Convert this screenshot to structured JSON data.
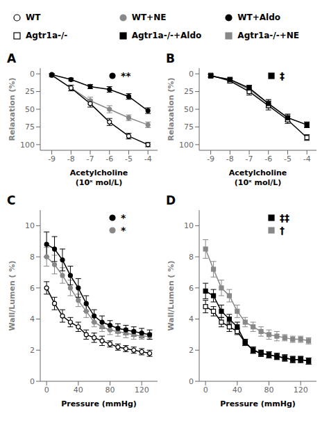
{
  "chart_data": [
    {
      "type": "line",
      "title": "A",
      "x_label": "Acetylcholine\n(10ˣ mol/L)",
      "y_label": "Relaxation (%)",
      "x": [
        -9,
        -8,
        -7,
        -6,
        -5,
        -4
      ],
      "xlim": [
        -9.6,
        -3.5
      ],
      "xticks": [
        -9,
        -8,
        -7,
        -6,
        -5,
        -4
      ],
      "ylim": [
        108,
        -8
      ],
      "yticks": [
        0,
        25,
        50,
        75,
        100
      ],
      "grid": false,
      "series": [
        {
          "name": "WT+NE",
          "color": "#888888",
          "marker": "circle",
          "line_style": "solid",
          "values": [
            2,
            20,
            38,
            50,
            62,
            72
          ],
          "errors": [
            2,
            4,
            5,
            5,
            4,
            4
          ]
        },
        {
          "name": "WT",
          "color": "#000000",
          "marker": "circle_open",
          "line_style": "solid",
          "values": [
            2,
            20,
            42,
            68,
            88,
            100
          ],
          "errors": [
            2,
            4,
            5,
            5,
            4,
            3
          ]
        },
        {
          "name": "WT+Aldo",
          "color": "#000000",
          "marker": "circle",
          "line_style": "solid",
          "values": [
            1,
            8,
            18,
            22,
            32,
            52
          ],
          "errors": [
            1,
            2,
            3,
            4,
            4,
            4
          ]
        }
      ],
      "annotations": [
        {
          "text": "**",
          "marker": "circle",
          "color": "#000000"
        }
      ]
    },
    {
      "type": "line",
      "title": "B",
      "x_label": "Acetylcholine\n(10ˣ mol/L)",
      "y_label": "Relaxation (%)",
      "x": [
        -9,
        -8,
        -7,
        -6,
        -5,
        -4
      ],
      "xlim": [
        -9.6,
        -3.5
      ],
      "xticks": [
        -9,
        -8,
        -7,
        -6,
        -5,
        -4
      ],
      "ylim": [
        108,
        -8
      ],
      "yticks": [
        0,
        25,
        50,
        75,
        100
      ],
      "grid": false,
      "series": [
        {
          "name": "Agtr1a-/-+NE",
          "color": "#888888",
          "marker": "square",
          "line_style": "solid",
          "values": [
            3,
            8,
            22,
            42,
            62,
            72
          ],
          "errors": [
            2,
            3,
            5,
            6,
            5,
            4
          ]
        },
        {
          "name": "Agtr1a-/-",
          "color": "#000000",
          "marker": "square_open",
          "line_style": "solid",
          "values": [
            2,
            10,
            25,
            45,
            65,
            90
          ],
          "errors": [
            2,
            3,
            5,
            6,
            5,
            4
          ]
        },
        {
          "name": "Agtr1a-/-+Aldo",
          "color": "#000000",
          "marker": "square",
          "line_style": "solid",
          "values": [
            3,
            8,
            20,
            42,
            62,
            72
          ],
          "errors": [
            2,
            2,
            4,
            5,
            5,
            4
          ]
        }
      ],
      "annotations": [
        {
          "text": "‡",
          "marker": "square",
          "color": "#000000"
        }
      ]
    },
    {
      "type": "line",
      "title": "C",
      "x_label": "Pressure (mmHg)",
      "y_label": "Wall/Lumen ( %)",
      "x": [
        0,
        10,
        20,
        30,
        40,
        50,
        60,
        70,
        80,
        90,
        100,
        110,
        120,
        130
      ],
      "xlim": [
        -8,
        140
      ],
      "xticks": [
        0,
        40,
        80,
        120
      ],
      "ylim": [
        0,
        11
      ],
      "yticks": [
        0,
        2,
        4,
        6,
        8,
        10
      ],
      "grid": false,
      "series": [
        {
          "name": "WT",
          "color": "#000000",
          "marker": "circle_open",
          "line_style": "solid",
          "values": [
            6.0,
            5.0,
            4.2,
            3.8,
            3.5,
            3.0,
            2.8,
            2.6,
            2.4,
            2.2,
            2.1,
            2.0,
            1.9,
            1.8
          ],
          "errors": [
            0.4,
            0.4,
            0.4,
            0.3,
            0.3,
            0.3,
            0.3,
            0.3,
            0.2,
            0.2,
            0.2,
            0.2,
            0.2,
            0.2
          ]
        },
        {
          "name": "WT+NE",
          "color": "#888888",
          "marker": "circle",
          "line_style": "solid",
          "values": [
            8.0,
            7.5,
            6.8,
            6.0,
            5.2,
            4.5,
            3.8,
            3.5,
            3.3,
            3.2,
            3.1,
            3.0,
            2.9,
            2.9
          ],
          "errors": [
            0.6,
            0.6,
            0.5,
            0.5,
            0.4,
            0.4,
            0.3,
            0.3,
            0.3,
            0.3,
            0.3,
            0.3,
            0.2,
            0.2
          ]
        },
        {
          "name": "WT+Aldo",
          "color": "#000000",
          "marker": "circle",
          "line_style": "solid",
          "values": [
            8.8,
            8.5,
            7.8,
            6.8,
            6.0,
            5.0,
            4.2,
            3.8,
            3.6,
            3.4,
            3.3,
            3.2,
            3.1,
            3.0
          ],
          "errors": [
            0.8,
            0.8,
            0.7,
            0.6,
            0.6,
            0.5,
            0.4,
            0.4,
            0.3,
            0.3,
            0.3,
            0.3,
            0.3,
            0.3
          ]
        }
      ],
      "annotations": [
        {
          "text": "*",
          "marker": "circle",
          "color": "#000000"
        },
        {
          "text": "*",
          "marker": "circle",
          "color": "#888888"
        }
      ]
    },
    {
      "type": "line",
      "title": "D",
      "x_label": "Pressure (mmHg)",
      "y_label": "Wall/Lumen ( %)",
      "x": [
        0,
        10,
        20,
        30,
        40,
        50,
        60,
        70,
        80,
        90,
        100,
        110,
        120,
        130
      ],
      "xlim": [
        -8,
        140
      ],
      "xticks": [
        0,
        40,
        80,
        120
      ],
      "ylim": [
        0,
        11
      ],
      "yticks": [
        0,
        2,
        4,
        6,
        8,
        10
      ],
      "grid": false,
      "series": [
        {
          "name": "Agtr1a-/-",
          "color": "#000000",
          "marker": "square_open",
          "line_style": "solid",
          "values": [
            4.8,
            4.5,
            3.8,
            3.5,
            3.2,
            2.5,
            2.0,
            1.8,
            1.7,
            1.6,
            1.5,
            1.4,
            1.4,
            1.3
          ],
          "errors": [
            0.4,
            0.3,
            0.3,
            0.3,
            0.2,
            0.2,
            0.2,
            0.2,
            0.2,
            0.2,
            0.2,
            0.2,
            0.2,
            0.2
          ]
        },
        {
          "name": "Agtr1a-/-+Aldo",
          "color": "#000000",
          "marker": "square",
          "line_style": "solid",
          "values": [
            5.8,
            5.5,
            4.5,
            4.0,
            3.5,
            2.5,
            2.0,
            1.8,
            1.7,
            1.6,
            1.5,
            1.4,
            1.4,
            1.3
          ],
          "errors": [
            0.5,
            0.4,
            0.4,
            0.3,
            0.3,
            0.2,
            0.2,
            0.2,
            0.2,
            0.2,
            0.2,
            0.2,
            0.2,
            0.2
          ]
        },
        {
          "name": "Agtr1a-/-+NE",
          "color": "#888888",
          "marker": "square",
          "line_style": "solid",
          "values": [
            8.5,
            7.2,
            6.0,
            5.5,
            4.5,
            3.8,
            3.5,
            3.2,
            3.0,
            2.9,
            2.8,
            2.7,
            2.7,
            2.6
          ],
          "errors": [
            0.6,
            0.5,
            0.5,
            0.4,
            0.4,
            0.3,
            0.3,
            0.3,
            0.3,
            0.3,
            0.2,
            0.2,
            0.2,
            0.2
          ]
        }
      ],
      "annotations": [
        {
          "text": "‡‡",
          "marker": "square",
          "color": "#000000"
        },
        {
          "text": "†",
          "marker": "square",
          "color": "#888888"
        }
      ]
    }
  ]
}
